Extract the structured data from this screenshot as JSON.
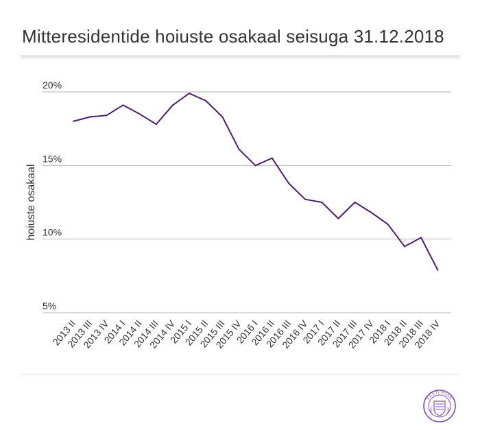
{
  "header": {
    "title": "Mitteresidentide hoiuste osakaal seisuga 31.12.2018"
  },
  "colors": {
    "line": "#4b1f6b",
    "grid": "#b3b3b3",
    "text": "#333333",
    "seal": "#7c4fb0"
  },
  "logo": {
    "name": "estonian-bank-seal",
    "text": "EESTI PANK"
  },
  "chart_data": {
    "type": "line",
    "title": "Mitteresidentide hoiuste osakaal seisuga 31.12.2018",
    "xlabel": "",
    "ylabel": "hoiuste osakaal",
    "ylim": [
      5,
      20
    ],
    "yticks": [
      5,
      10,
      15,
      20
    ],
    "ytick_labels": [
      "5%",
      "10%",
      "15%",
      "20%"
    ],
    "grid": true,
    "legend": "none",
    "categories": [
      "2013 II",
      "2013 III",
      "2013 IV",
      "2014 I",
      "2014 II",
      "2014 III",
      "2014 IV",
      "2015 I",
      "2015 II",
      "2015 III",
      "2015 IV",
      "2016 I",
      "2016 II",
      "2016 III",
      "2016 IV",
      "2017 I",
      "2017 II",
      "2017 III",
      "2017 IV",
      "2018 I",
      "2018 II",
      "2018 III",
      "2018 IV"
    ],
    "series": [
      {
        "values": [
          18.0,
          18.3,
          18.4,
          19.1,
          18.5,
          17.8,
          19.1,
          19.9,
          19.4,
          18.3,
          16.1,
          15.0,
          15.5,
          13.8,
          12.7,
          12.5,
          11.4,
          12.5,
          11.8,
          11.0,
          9.5,
          10.1,
          7.9
        ]
      }
    ]
  }
}
